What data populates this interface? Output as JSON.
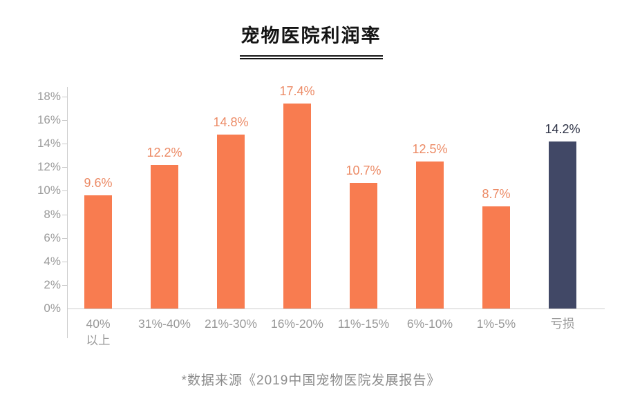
{
  "title": "宠物医院利润率",
  "footer": "*数据来源《2019中国宠物医院发展报告》",
  "colors": {
    "bar_orange": "#F87C50",
    "bar_loss_navy": "#414866",
    "value_label_orange": "#EC8A65",
    "value_label_dark": "#2F3447",
    "axis_text_gray": "#9A9A9A",
    "axis_line_gray": "#CCCCCC",
    "title_black": "#141414",
    "footer_gray": "#8C8C8C"
  },
  "chart_data": {
    "type": "bar",
    "title": "宠物医院利润率",
    "categories": [
      "40%\n以上",
      "31%-40%",
      "21%-30%",
      "16%-20%",
      "11%-15%",
      "6%-10%",
      "1%-5%",
      "亏损"
    ],
    "values": [
      9.6,
      12.2,
      14.8,
      17.4,
      10.7,
      12.5,
      8.7,
      14.2
    ],
    "value_labels": [
      "9.6%",
      "12.2%",
      "14.8%",
      "17.4%",
      "10.7%",
      "12.5%",
      "8.7%",
      "14.2%"
    ],
    "bar_colors": [
      "#F87C50",
      "#F87C50",
      "#F87C50",
      "#F87C50",
      "#F87C50",
      "#F87C50",
      "#F87C50",
      "#414866"
    ],
    "value_label_colors": [
      "#EC8A65",
      "#EC8A65",
      "#EC8A65",
      "#EC8A65",
      "#EC8A65",
      "#EC8A65",
      "#EC8A65",
      "#2F3447"
    ],
    "xlabel": "",
    "ylabel": "",
    "ylim": [
      0,
      18
    ],
    "ytick_step": 2,
    "yticks": [
      "0%",
      "2%",
      "4%",
      "6%",
      "8%",
      "10%",
      "12%",
      "14%",
      "16%",
      "18%"
    ],
    "grid": false,
    "legend": false,
    "source_note": "*数据来源《2019中国宠物医院发展报告》"
  }
}
